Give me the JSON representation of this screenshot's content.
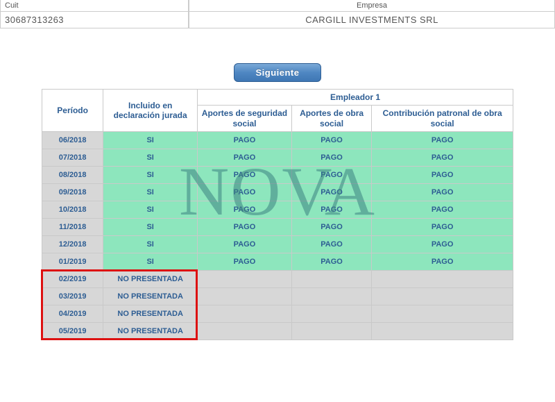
{
  "header": {
    "cuit_label": "Cuit",
    "empresa_label": "Empresa",
    "cuit_value": "30687313263",
    "empresa_value": "CARGILL INVESTMENTS SRL"
  },
  "button": {
    "siguiente": "Siguiente"
  },
  "table": {
    "group_header": "Empleador 1",
    "columns": {
      "periodo": "Período",
      "declaracion": "Incluido en declaración jurada",
      "aportes_ss": "Aportes de seguridad social",
      "aportes_os": "Aportes de obra social",
      "contrib_os": "Contribución patronal de obra social"
    },
    "rows": [
      {
        "periodo": "06/2018",
        "decl": "SI",
        "ss": "PAGO",
        "os": "PAGO",
        "cp": "PAGO",
        "status": "paid"
      },
      {
        "periodo": "07/2018",
        "decl": "SI",
        "ss": "PAGO",
        "os": "PAGO",
        "cp": "PAGO",
        "status": "paid"
      },
      {
        "periodo": "08/2018",
        "decl": "SI",
        "ss": "PAGO",
        "os": "PAGO",
        "cp": "PAGO",
        "status": "paid"
      },
      {
        "periodo": "09/2018",
        "decl": "SI",
        "ss": "PAGO",
        "os": "PAGO",
        "cp": "PAGO",
        "status": "paid"
      },
      {
        "periodo": "10/2018",
        "decl": "SI",
        "ss": "PAGO",
        "os": "PAGO",
        "cp": "PAGO",
        "status": "paid"
      },
      {
        "periodo": "11/2018",
        "decl": "SI",
        "ss": "PAGO",
        "os": "PAGO",
        "cp": "PAGO",
        "status": "paid"
      },
      {
        "periodo": "12/2018",
        "decl": "SI",
        "ss": "PAGO",
        "os": "PAGO",
        "cp": "PAGO",
        "status": "paid"
      },
      {
        "periodo": "01/2019",
        "decl": "SI",
        "ss": "PAGO",
        "os": "PAGO",
        "cp": "PAGO",
        "status": "paid"
      },
      {
        "periodo": "02/2019",
        "decl": "NO PRESENTADA",
        "ss": "",
        "os": "",
        "cp": "",
        "status": "np"
      },
      {
        "periodo": "03/2019",
        "decl": "NO PRESENTADA",
        "ss": "",
        "os": "",
        "cp": "",
        "status": "np"
      },
      {
        "periodo": "04/2019",
        "decl": "NO PRESENTADA",
        "ss": "",
        "os": "",
        "cp": "",
        "status": "np"
      },
      {
        "periodo": "05/2019",
        "decl": "NO PRESENTADA",
        "ss": "",
        "os": "",
        "cp": "",
        "status": "np"
      }
    ]
  },
  "watermark": "NOVA",
  "styling": {
    "paid_bg": "#8de6bd",
    "np_bg": "#d7d7d7",
    "header_text_color": "#2d5d93",
    "highlight_border": "#d11",
    "button_gradient_top": "#7aa9d8",
    "button_gradient_bottom": "#3f77b4"
  }
}
